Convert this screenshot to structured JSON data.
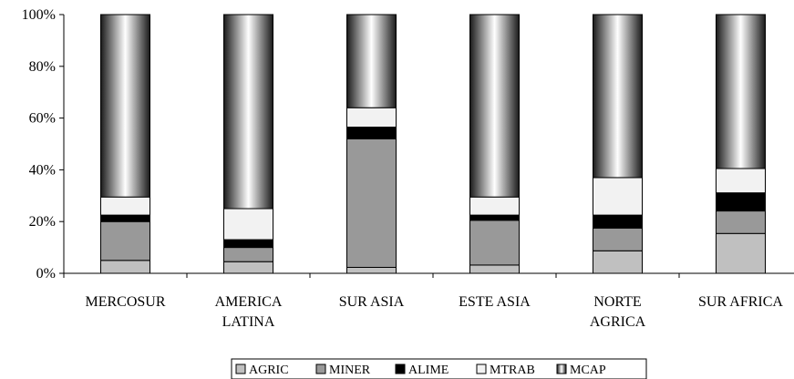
{
  "chart_data": {
    "type": "bar",
    "stacked": true,
    "orientation": "vertical",
    "categories": [
      [
        "MERCOSUR"
      ],
      [
        "AMERICA",
        "LATINA"
      ],
      [
        "SUR ASIA"
      ],
      [
        "ESTE ASIA"
      ],
      [
        "NORTE",
        "AGRICA"
      ],
      [
        "SUR AFRICA"
      ]
    ],
    "series": [
      {
        "name": "AGRIC",
        "color": "#c0c0c0",
        "values": [
          5,
          4.5,
          2.3,
          3.2,
          8.7,
          15.4
        ]
      },
      {
        "name": "MINER",
        "color": "#999999",
        "values": [
          15,
          5.5,
          49.7,
          17.3,
          8.8,
          8.7
        ]
      },
      {
        "name": "ALIME",
        "color": "#000000",
        "values": [
          2.5,
          3,
          4.5,
          2,
          5,
          7
        ]
      },
      {
        "name": "MTRAB",
        "color": "#f2f2f2",
        "values": [
          7,
          12,
          7.5,
          7,
          14.5,
          9.4
        ]
      },
      {
        "name": "MCAP",
        "color": "gradient",
        "values": [
          70.5,
          75,
          36,
          70.5,
          63,
          59.5
        ]
      }
    ],
    "ylim": [
      0,
      100
    ],
    "yticks": [
      "0%",
      "20%",
      "40%",
      "60%",
      "80%",
      "100%"
    ],
    "legend_position": "bottom",
    "grid": false
  }
}
